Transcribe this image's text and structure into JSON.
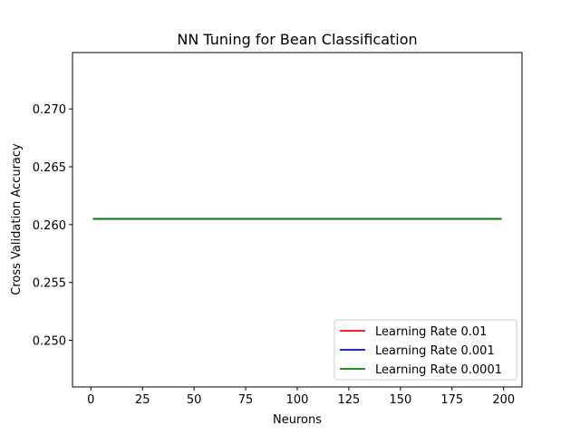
{
  "chart_data": {
    "type": "line",
    "title": "NN Tuning for Bean Classification",
    "xlabel": "Neurons",
    "ylabel": "Cross Validation Accuracy",
    "xlim": [
      -8.9,
      208.9
    ],
    "ylim": [
      0.24597,
      0.27487
    ],
    "xticks": [
      0,
      25,
      50,
      75,
      100,
      125,
      150,
      175,
      200
    ],
    "yticks": [
      0.25,
      0.255,
      0.26,
      0.265,
      0.27
    ],
    "ytick_labels": [
      "0.250",
      "0.255",
      "0.260",
      "0.265",
      "0.270"
    ],
    "grid": false,
    "legend_position": "lower-right",
    "series": [
      {
        "name": "Learning Rate 0.01",
        "color": "#ff0000",
        "x": [
          1,
          199
        ],
        "y": [
          0.2605,
          0.2605
        ]
      },
      {
        "name": "Learning Rate 0.001",
        "color": "#0000ff",
        "x": [
          1,
          199
        ],
        "y": [
          0.2605,
          0.2605
        ]
      },
      {
        "name": "Learning Rate 0.0001",
        "color": "#008000",
        "x": [
          1,
          199
        ],
        "y": [
          0.2605,
          0.2605
        ]
      }
    ]
  }
}
